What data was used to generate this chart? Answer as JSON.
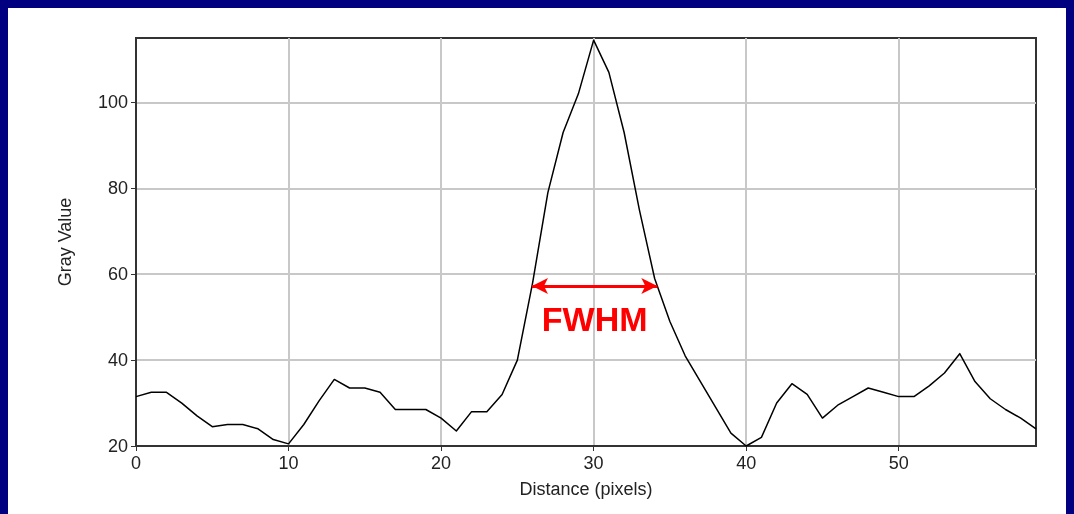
{
  "chart_data": {
    "type": "line",
    "xlabel": "Distance (pixels)",
    "ylabel": "Gray Value",
    "x": [
      0,
      1,
      2,
      3,
      4,
      5,
      6,
      7,
      8,
      9,
      10,
      11,
      12,
      13,
      14,
      15,
      16,
      17,
      18,
      19,
      20,
      21,
      22,
      23,
      24,
      25,
      26,
      27,
      28,
      29,
      30,
      31,
      32,
      33,
      34,
      35,
      36,
      37,
      38,
      39,
      40,
      41,
      42,
      43,
      44,
      45,
      46,
      47,
      48,
      49,
      50,
      51,
      52,
      53,
      54,
      55,
      56,
      57,
      58,
      59
    ],
    "series": [
      {
        "color": "#000000",
        "values": [
          31.5,
          32.5,
          32.5,
          30,
          27,
          24.5,
          25,
          25,
          24,
          21.5,
          20.5,
          25,
          30.5,
          35.5,
          33.5,
          33.5,
          32.5,
          28.5,
          28.5,
          28.5,
          26.5,
          23.5,
          28,
          28,
          32,
          40,
          58,
          79,
          93,
          102,
          114.5,
          107,
          93,
          75,
          59,
          49,
          41,
          35,
          29,
          23,
          20,
          22,
          30,
          34.5,
          32,
          26.5,
          29.5,
          31.5,
          33.5,
          32.5,
          31.5,
          31.5,
          34,
          37,
          41.5,
          35,
          31,
          28.5,
          26.5,
          24
        ]
      }
    ],
    "xlim": [
      0,
      59
    ],
    "ylim": [
      20,
      115
    ],
    "xticks": [
      0,
      10,
      20,
      30,
      40,
      50
    ],
    "yticks": [
      20,
      40,
      60,
      80,
      100
    ],
    "grid": true,
    "marker": "none",
    "line_style": "solid",
    "annotations": [
      "FWHM"
    ]
  }
}
